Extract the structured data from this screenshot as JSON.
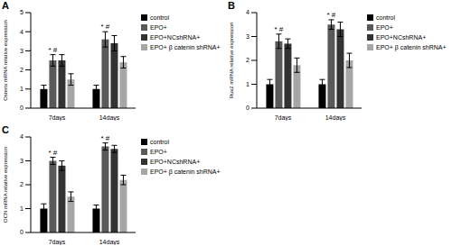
{
  "chart_data": [
    {
      "type": "bar",
      "title": "A",
      "ylabel": "Osterix mRNA relative expression",
      "categories": [
        "7days",
        "14days"
      ],
      "ylim": [
        0,
        5
      ],
      "yticks": [
        0,
        1,
        2,
        3,
        4,
        5
      ],
      "grid": false,
      "legend": "right",
      "series": [
        {
          "name": "control",
          "color": "#000000",
          "values": [
            1.0,
            1.0
          ],
          "errors": [
            0.2,
            0.2
          ]
        },
        {
          "name": "EPO+",
          "color": "#595959",
          "values": [
            2.5,
            3.6
          ],
          "errors": [
            0.3,
            0.4
          ]
        },
        {
          "name": "EPO+NCshRNA+",
          "color": "#333333",
          "values": [
            2.5,
            3.4
          ],
          "errors": [
            0.3,
            0.4
          ]
        },
        {
          "name": "EPO+ β catenin shRNA+",
          "color": "#a6a6a6",
          "values": [
            1.5,
            2.4
          ],
          "errors": [
            0.3,
            0.3
          ]
        }
      ],
      "annotations": [
        {
          "text": "* #",
          "category": "7days",
          "series": "EPO+"
        },
        {
          "text": "* #",
          "category": "14days",
          "series": "EPO+"
        }
      ]
    },
    {
      "type": "bar",
      "title": "B",
      "ylabel": "Rux2 mRNA relative expression",
      "categories": [
        "7days",
        "14days"
      ],
      "ylim": [
        0,
        4
      ],
      "yticks": [
        0,
        1,
        2,
        3,
        4
      ],
      "grid": false,
      "legend": "right",
      "series": [
        {
          "name": "control",
          "color": "#000000",
          "values": [
            1.0,
            1.0
          ],
          "errors": [
            0.2,
            0.2
          ]
        },
        {
          "name": "EPO+",
          "color": "#595959",
          "values": [
            2.8,
            3.5
          ],
          "errors": [
            0.3,
            0.2
          ]
        },
        {
          "name": "EPO+NCshRNA+",
          "color": "#333333",
          "values": [
            2.7,
            3.3
          ],
          "errors": [
            0.2,
            0.3
          ]
        },
        {
          "name": "EPO+ β catenin shRNA+",
          "color": "#a6a6a6",
          "values": [
            1.8,
            2.0
          ],
          "errors": [
            0.3,
            0.3
          ]
        }
      ],
      "annotations": [
        {
          "text": "* #",
          "category": "7days",
          "series": "EPO+"
        },
        {
          "text": "* #",
          "category": "14days",
          "series": "EPO+"
        }
      ]
    },
    {
      "type": "bar",
      "title": "C",
      "ylabel": "OCN mRNA relative expression",
      "categories": [
        "7days",
        "14days"
      ],
      "ylim": [
        0,
        4
      ],
      "yticks": [
        0,
        1,
        2,
        3,
        4
      ],
      "grid": false,
      "legend": "right",
      "series": [
        {
          "name": "control",
          "color": "#000000",
          "values": [
            1.0,
            1.0
          ],
          "errors": [
            0.2,
            0.15
          ]
        },
        {
          "name": "EPO+",
          "color": "#595959",
          "values": [
            3.0,
            3.6
          ],
          "errors": [
            0.15,
            0.15
          ]
        },
        {
          "name": "EPO+NCshRNA+",
          "color": "#333333",
          "values": [
            2.8,
            3.5
          ],
          "errors": [
            0.2,
            0.15
          ]
        },
        {
          "name": "EPO+ β catenin shRNA+",
          "color": "#a6a6a6",
          "values": [
            1.5,
            2.2
          ],
          "errors": [
            0.2,
            0.2
          ]
        }
      ],
      "annotations": [
        {
          "text": "* #",
          "category": "7days",
          "series": "EPO+"
        },
        {
          "text": "* #",
          "category": "14days",
          "series": "EPO+"
        }
      ]
    }
  ]
}
